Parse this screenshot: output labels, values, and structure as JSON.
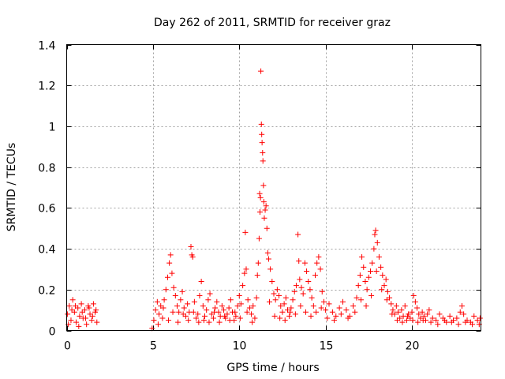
{
  "chart_data": {
    "type": "scatter",
    "title": "Day 262 of 2011, SRMTID for receiver graz",
    "xlabel": "GPS time / hours",
    "ylabel": "SRMTID / TECUs",
    "xlim": [
      0,
      24
    ],
    "ylim": [
      0,
      1.4
    ],
    "xticks": [
      0,
      5,
      10,
      15,
      20
    ],
    "xtick_labels": [
      "0",
      "5",
      "10",
      "15",
      "20"
    ],
    "yticks": [
      0,
      0.2,
      0.4,
      0.6,
      0.8,
      1,
      1.2,
      1.4
    ],
    "ytick_labels": [
      "0",
      "0.2",
      "0.4",
      "0.6",
      "0.8",
      "1",
      "1.2",
      "1.4"
    ],
    "grid": true,
    "marker": "+",
    "color": "#ff0000",
    "series": [
      {
        "name": "SRMTID",
        "points": [
          [
            0.05,
            0.08
          ],
          [
            0.15,
            0.12
          ],
          [
            0.25,
            0.05
          ],
          [
            0.35,
            0.15
          ],
          [
            0.45,
            0.09
          ],
          [
            0.55,
            0.04
          ],
          [
            0.65,
            0.11
          ],
          [
            0.75,
            0.07
          ],
          [
            0.85,
            0.13
          ],
          [
            0.95,
            0.06
          ],
          [
            1.05,
            0.1
          ],
          [
            1.15,
            0.03
          ],
          [
            1.25,
            0.12
          ],
          [
            1.35,
            0.08
          ],
          [
            1.45,
            0.05
          ],
          [
            1.55,
            0.13
          ],
          [
            1.65,
            0.09
          ],
          [
            1.75,
            0.04
          ],
          [
            0.1,
            0.03
          ],
          [
            0.3,
            0.1
          ],
          [
            0.5,
            0.12
          ],
          [
            0.7,
            0.02
          ],
          [
            0.9,
            0.09
          ],
          [
            1.1,
            0.06
          ],
          [
            1.3,
            0.11
          ],
          [
            1.5,
            0.07
          ],
          [
            1.7,
            0.1
          ],
          [
            4.95,
            0.01
          ],
          [
            5.05,
            0.05
          ],
          [
            5.15,
            0.1
          ],
          [
            5.25,
            0.14
          ],
          [
            5.35,
            0.08
          ],
          [
            5.45,
            0.12
          ],
          [
            5.55,
            0.06
          ],
          [
            5.65,
            0.15
          ],
          [
            5.75,
            0.2
          ],
          [
            5.85,
            0.26
          ],
          [
            5.95,
            0.33
          ],
          [
            6.02,
            0.37
          ],
          [
            6.1,
            0.28
          ],
          [
            6.2,
            0.21
          ],
          [
            6.3,
            0.17
          ],
          [
            6.4,
            0.12
          ],
          [
            6.5,
            0.09
          ],
          [
            6.6,
            0.15
          ],
          [
            6.7,
            0.19
          ],
          [
            6.8,
            0.11
          ],
          [
            6.9,
            0.07
          ],
          [
            7.0,
            0.13
          ],
          [
            7.1,
            0.09
          ],
          [
            7.2,
            0.41
          ],
          [
            7.25,
            0.37
          ],
          [
            7.3,
            0.36
          ],
          [
            7.4,
            0.14
          ],
          [
            7.5,
            0.06
          ],
          [
            7.6,
            0.08
          ],
          [
            7.7,
            0.17
          ],
          [
            7.8,
            0.24
          ],
          [
            7.9,
            0.12
          ],
          [
            8.0,
            0.07
          ],
          [
            8.1,
            0.1
          ],
          [
            8.2,
            0.15
          ],
          [
            8.3,
            0.18
          ],
          [
            8.4,
            0.08
          ],
          [
            8.5,
            0.06
          ],
          [
            8.6,
            0.11
          ],
          [
            8.7,
            0.14
          ],
          [
            8.8,
            0.09
          ],
          [
            8.9,
            0.07
          ],
          [
            9.0,
            0.12
          ],
          [
            9.1,
            0.1
          ],
          [
            9.2,
            0.06
          ],
          [
            9.3,
            0.08
          ],
          [
            9.4,
            0.11
          ],
          [
            9.5,
            0.15
          ],
          [
            9.6,
            0.09
          ],
          [
            9.7,
            0.05
          ],
          [
            9.8,
            0.07
          ],
          [
            9.9,
            0.12
          ],
          [
            10.0,
            0.17
          ],
          [
            10.1,
            0.13
          ],
          [
            10.2,
            0.22
          ],
          [
            10.3,
            0.28
          ],
          [
            10.35,
            0.48
          ],
          [
            10.4,
            0.3
          ],
          [
            10.5,
            0.15
          ],
          [
            10.6,
            0.11
          ],
          [
            10.7,
            0.08
          ],
          [
            10.8,
            0.12
          ],
          [
            10.9,
            0.06
          ],
          [
            11.0,
            0.16
          ],
          [
            11.05,
            0.27
          ],
          [
            11.1,
            0.33
          ],
          [
            11.15,
            0.45
          ],
          [
            11.18,
            0.67
          ],
          [
            11.2,
            0.58
          ],
          [
            11.23,
            0.65
          ],
          [
            11.25,
            1.27
          ],
          [
            11.28,
            1.01
          ],
          [
            11.3,
            0.96
          ],
          [
            11.32,
            0.92
          ],
          [
            11.35,
            0.87
          ],
          [
            11.37,
            0.83
          ],
          [
            11.4,
            0.71
          ],
          [
            11.42,
            0.63
          ],
          [
            11.45,
            0.55
          ],
          [
            11.5,
            0.59
          ],
          [
            11.55,
            0.61
          ],
          [
            11.6,
            0.5
          ],
          [
            11.65,
            0.38
          ],
          [
            11.7,
            0.35
          ],
          [
            11.8,
            0.3
          ],
          [
            11.9,
            0.24
          ],
          [
            12.0,
            0.18
          ],
          [
            12.1,
            0.15
          ],
          [
            12.2,
            0.2
          ],
          [
            12.3,
            0.17
          ],
          [
            12.4,
            0.12
          ],
          [
            12.5,
            0.09
          ],
          [
            12.6,
            0.13
          ],
          [
            12.7,
            0.16
          ],
          [
            12.8,
            0.1
          ],
          [
            12.9,
            0.07
          ],
          [
            13.0,
            0.11
          ],
          [
            13.1,
            0.15
          ],
          [
            13.2,
            0.19
          ],
          [
            13.3,
            0.22
          ],
          [
            13.4,
            0.47
          ],
          [
            13.45,
            0.34
          ],
          [
            13.5,
            0.25
          ],
          [
            13.6,
            0.21
          ],
          [
            13.7,
            0.18
          ],
          [
            13.8,
            0.33
          ],
          [
            13.9,
            0.29
          ],
          [
            14.0,
            0.24
          ],
          [
            14.1,
            0.2
          ],
          [
            14.2,
            0.16
          ],
          [
            14.3,
            0.12
          ],
          [
            14.4,
            0.27
          ],
          [
            14.5,
            0.33
          ],
          [
            14.6,
            0.36
          ],
          [
            14.7,
            0.3
          ],
          [
            14.8,
            0.19
          ],
          [
            14.9,
            0.14
          ],
          [
            15.0,
            0.1
          ],
          [
            15.2,
            0.13
          ],
          [
            15.4,
            0.09
          ],
          [
            15.6,
            0.07
          ],
          [
            15.8,
            0.11
          ],
          [
            16.0,
            0.14
          ],
          [
            16.2,
            0.1
          ],
          [
            16.4,
            0.07
          ],
          [
            16.6,
            0.12
          ],
          [
            16.8,
            0.16
          ],
          [
            16.9,
            0.22
          ],
          [
            17.0,
            0.27
          ],
          [
            17.1,
            0.36
          ],
          [
            17.2,
            0.31
          ],
          [
            17.3,
            0.24
          ],
          [
            17.4,
            0.2
          ],
          [
            17.5,
            0.26
          ],
          [
            17.6,
            0.29
          ],
          [
            17.7,
            0.33
          ],
          [
            17.8,
            0.4
          ],
          [
            17.85,
            0.47
          ],
          [
            17.9,
            0.49
          ],
          [
            18.0,
            0.43
          ],
          [
            18.1,
            0.36
          ],
          [
            18.2,
            0.31
          ],
          [
            18.3,
            0.27
          ],
          [
            18.4,
            0.22
          ],
          [
            18.5,
            0.25
          ],
          [
            18.6,
            0.19
          ],
          [
            18.7,
            0.16
          ],
          [
            18.8,
            0.13
          ],
          [
            18.9,
            0.1
          ],
          [
            19.0,
            0.08
          ],
          [
            19.1,
            0.12
          ],
          [
            19.2,
            0.09
          ],
          [
            19.3,
            0.06
          ],
          [
            19.4,
            0.1
          ],
          [
            19.5,
            0.07
          ],
          [
            19.6,
            0.12
          ],
          [
            19.7,
            0.05
          ],
          [
            19.8,
            0.08
          ],
          [
            19.9,
            0.06
          ],
          [
            20.0,
            0.09
          ],
          [
            20.1,
            0.17
          ],
          [
            20.2,
            0.14
          ],
          [
            20.3,
            0.11
          ],
          [
            20.4,
            0.08
          ],
          [
            20.5,
            0.06
          ],
          [
            20.6,
            0.09
          ],
          [
            20.7,
            0.07
          ],
          [
            20.8,
            0.05
          ],
          [
            20.9,
            0.08
          ],
          [
            21.0,
            0.1
          ],
          [
            21.2,
            0.06
          ],
          [
            21.4,
            0.05
          ],
          [
            21.6,
            0.08
          ],
          [
            21.8,
            0.06
          ],
          [
            22.0,
            0.04
          ],
          [
            22.2,
            0.07
          ],
          [
            22.4,
            0.05
          ],
          [
            22.6,
            0.06
          ],
          [
            22.8,
            0.09
          ],
          [
            22.9,
            0.12
          ],
          [
            23.0,
            0.08
          ],
          [
            23.2,
            0.05
          ],
          [
            23.4,
            0.04
          ],
          [
            23.6,
            0.07
          ],
          [
            23.8,
            0.05
          ],
          [
            23.95,
            0.06
          ],
          [
            5.3,
            0.03
          ],
          [
            5.6,
            0.11
          ],
          [
            5.9,
            0.05
          ],
          [
            6.15,
            0.09
          ],
          [
            6.45,
            0.04
          ],
          [
            6.75,
            0.08
          ],
          [
            7.05,
            0.05
          ],
          [
            7.35,
            0.09
          ],
          [
            7.65,
            0.04
          ],
          [
            7.95,
            0.05
          ],
          [
            8.25,
            0.04
          ],
          [
            8.55,
            0.09
          ],
          [
            8.85,
            0.04
          ],
          [
            9.15,
            0.07
          ],
          [
            9.45,
            0.05
          ],
          [
            9.75,
            0.09
          ],
          [
            10.05,
            0.06
          ],
          [
            10.45,
            0.09
          ],
          [
            10.75,
            0.04
          ],
          [
            11.75,
            0.14
          ],
          [
            12.05,
            0.07
          ],
          [
            12.35,
            0.06
          ],
          [
            12.65,
            0.05
          ],
          [
            12.95,
            0.09
          ],
          [
            13.25,
            0.08
          ],
          [
            13.55,
            0.12
          ],
          [
            13.85,
            0.09
          ],
          [
            14.15,
            0.07
          ],
          [
            14.45,
            0.09
          ],
          [
            14.75,
            0.11
          ],
          [
            15.1,
            0.06
          ],
          [
            15.5,
            0.05
          ],
          [
            15.9,
            0.08
          ],
          [
            16.3,
            0.06
          ],
          [
            16.7,
            0.09
          ],
          [
            17.05,
            0.15
          ],
          [
            17.35,
            0.12
          ],
          [
            17.65,
            0.17
          ],
          [
            17.95,
            0.29
          ],
          [
            18.25,
            0.2
          ],
          [
            18.55,
            0.15
          ],
          [
            18.85,
            0.08
          ],
          [
            19.15,
            0.05
          ],
          [
            19.45,
            0.04
          ],
          [
            19.75,
            0.07
          ],
          [
            20.05,
            0.05
          ],
          [
            20.35,
            0.04
          ],
          [
            20.65,
            0.05
          ],
          [
            21.1,
            0.04
          ],
          [
            21.5,
            0.03
          ],
          [
            21.9,
            0.05
          ],
          [
            22.3,
            0.04
          ],
          [
            22.7,
            0.03
          ],
          [
            23.1,
            0.04
          ],
          [
            23.5,
            0.03
          ],
          [
            23.9,
            0.03
          ]
        ]
      }
    ]
  }
}
